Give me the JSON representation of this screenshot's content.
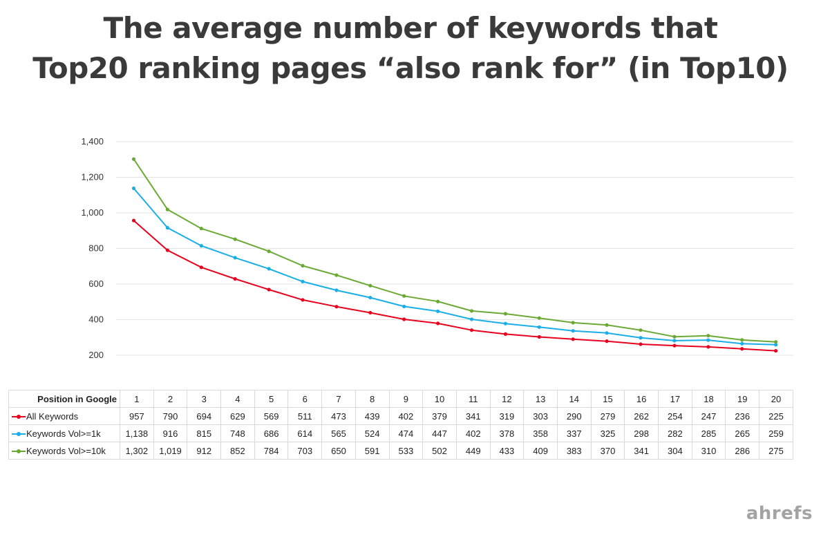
{
  "title": {
    "line1": "The average number of keywords that",
    "line2": "Top20 ranking pages “also rank for” (in Top10)"
  },
  "brand": "ahrefs",
  "table": {
    "row_header": "Position in Google"
  },
  "chart_data": {
    "type": "line",
    "title": "The average number of keywords that Top20 ranking pages “also rank for” (in Top10)",
    "xlabel": "Position in Google",
    "ylabel": "",
    "x": [
      1,
      2,
      3,
      4,
      5,
      6,
      7,
      8,
      9,
      10,
      11,
      12,
      13,
      14,
      15,
      16,
      17,
      18,
      19,
      20
    ],
    "ylim": [
      200,
      1400
    ],
    "yticks": [
      200,
      400,
      600,
      800,
      1000,
      1200,
      1400
    ],
    "ytick_labels": [
      "200",
      "400",
      "600",
      "800",
      "1,000",
      "1,200",
      "1,400"
    ],
    "grid": true,
    "legend": "table",
    "series": [
      {
        "name": "All Keywords",
        "color": "#e8001c",
        "values": [
          957,
          790,
          694,
          629,
          569,
          511,
          473,
          439,
          402,
          379,
          341,
          319,
          303,
          290,
          279,
          262,
          254,
          247,
          236,
          225
        ]
      },
      {
        "name": "Keywords Vol>=1k",
        "color": "#19aee8",
        "values": [
          1138,
          916,
          815,
          748,
          686,
          614,
          565,
          524,
          474,
          447,
          402,
          378,
          358,
          337,
          325,
          298,
          282,
          285,
          265,
          259
        ]
      },
      {
        "name": "Keywords Vol>=10k",
        "color": "#6aaa34",
        "values": [
          1302,
          1019,
          912,
          852,
          784,
          703,
          650,
          591,
          533,
          502,
          449,
          433,
          409,
          383,
          370,
          341,
          304,
          310,
          286,
          275
        ]
      }
    ]
  }
}
